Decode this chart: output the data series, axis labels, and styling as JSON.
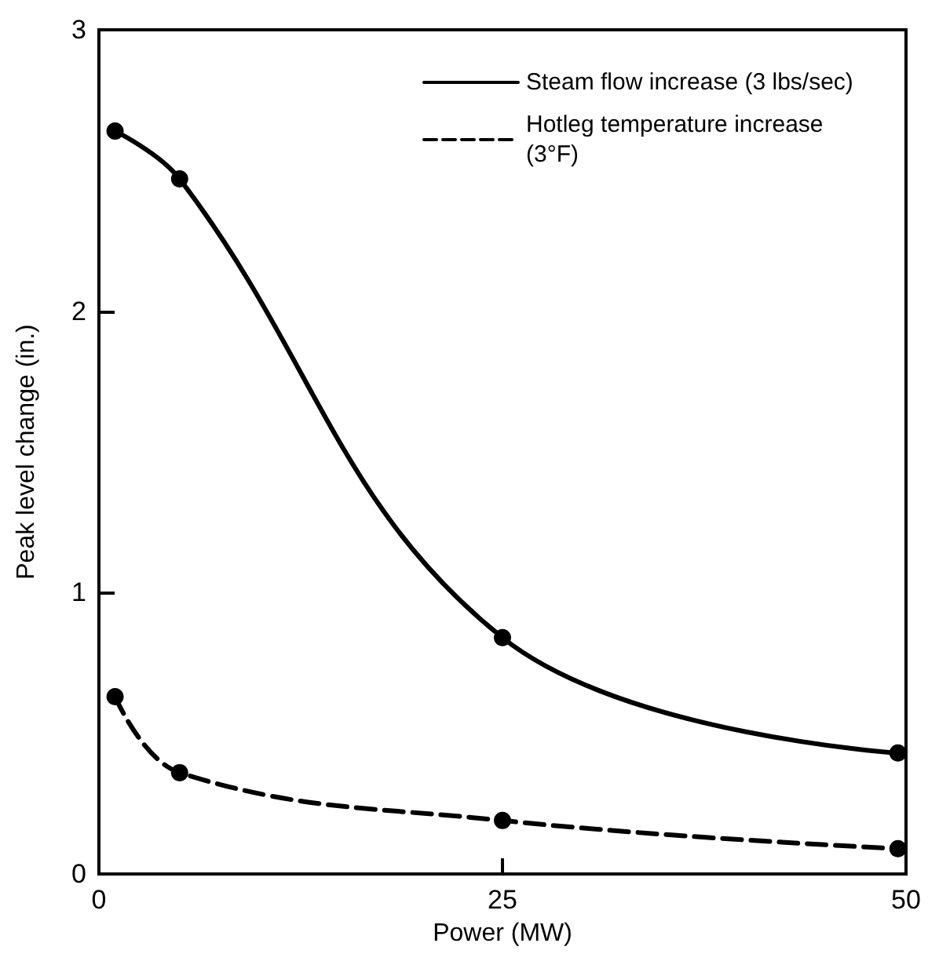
{
  "chart_data": {
    "type": "line",
    "xlabel": "Power (MW)",
    "ylabel": "Peak level change (in.)",
    "x": [
      1,
      5,
      25,
      49.5
    ],
    "series": [
      {
        "name": "Steam flow increase (3 lbs/sec)",
        "color": "#000000",
        "line_style": "solid",
        "values": [
          2.64,
          2.47,
          0.84,
          0.43
        ]
      },
      {
        "name": "Hotleg temperature increase (3°F)",
        "color": "#000000",
        "line_style": "dashed",
        "values": [
          0.63,
          0.36,
          0.19,
          0.09
        ]
      }
    ],
    "xlim": [
      0,
      50
    ],
    "xticks": [
      0,
      25,
      50
    ],
    "ylim": [
      0,
      3
    ],
    "yticks": [
      0,
      1,
      2,
      3
    ],
    "grid": false,
    "legend": "top right",
    "marker": "circle"
  }
}
